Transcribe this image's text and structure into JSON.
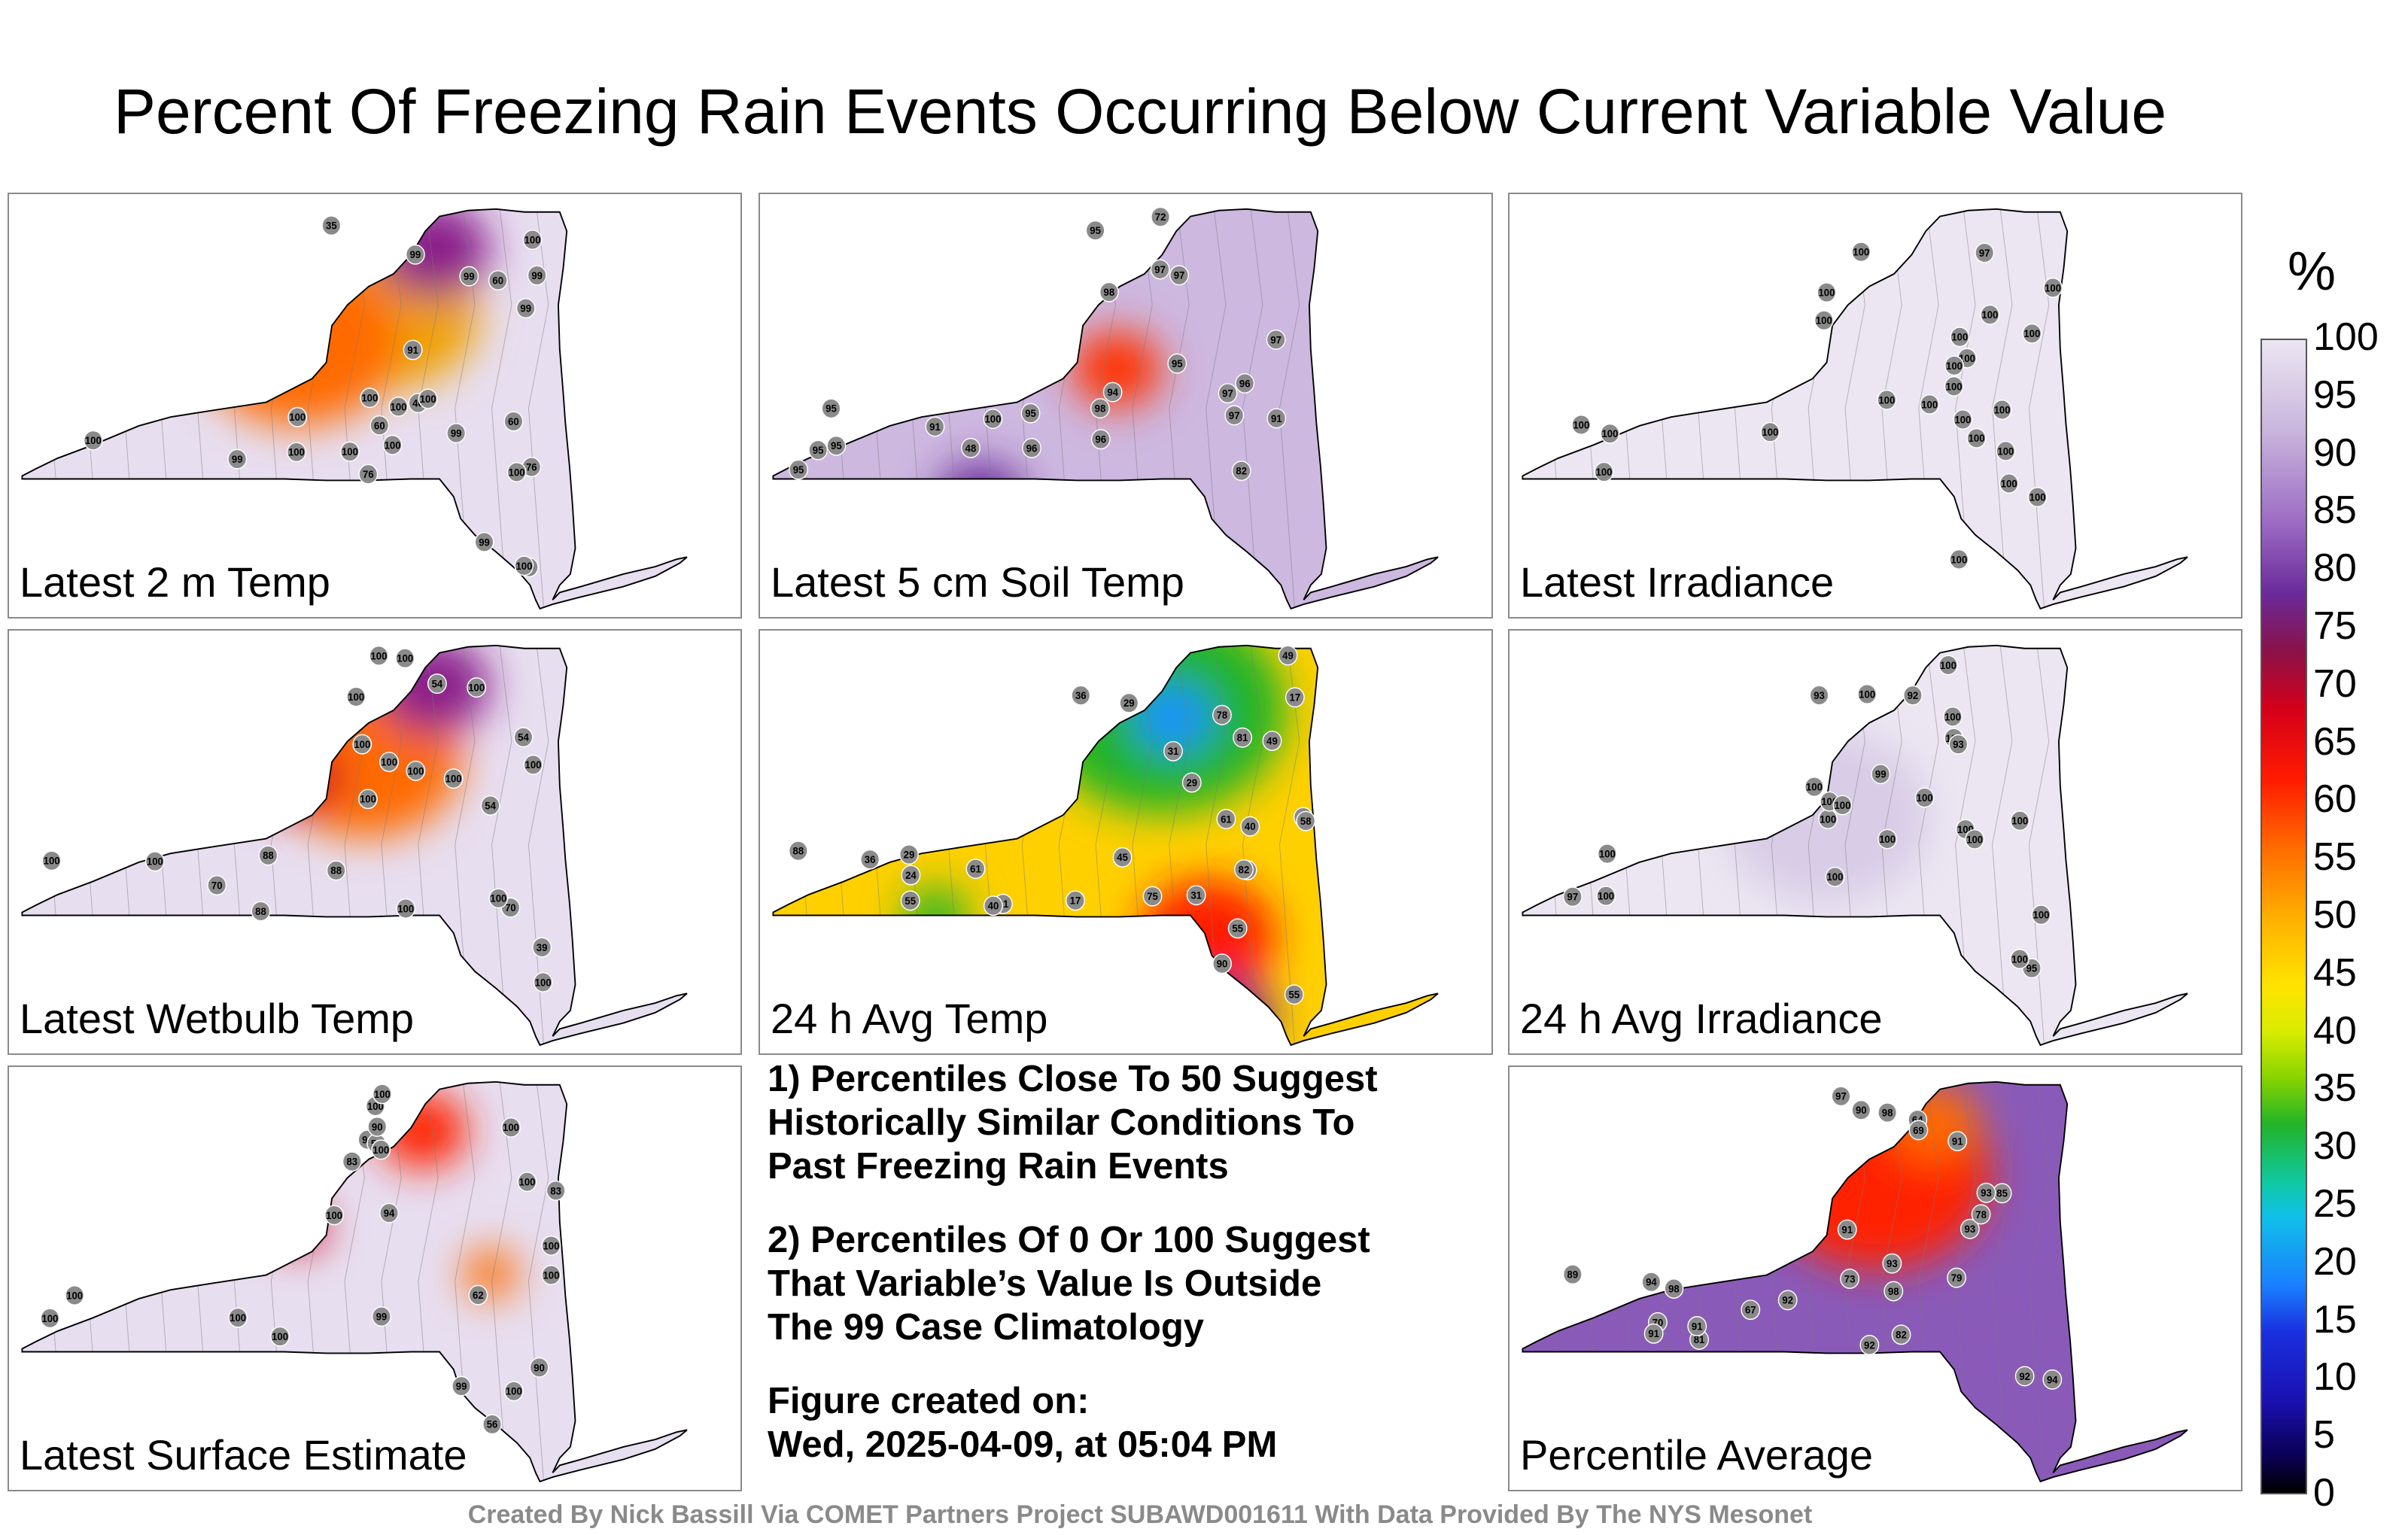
{
  "title": "Percent Of Freezing Rain Events Occurring Below Current Variable Value",
  "panels": [
    {
      "label": "Latest 2 m Temp",
      "base": "#e7def0",
      "hot": [
        [
          0.66,
          0.28,
          "#f0a000",
          0.16
        ],
        [
          0.5,
          0.35,
          "#ff6a00",
          0.18
        ],
        [
          0.74,
          0.12,
          "#8a1a8a",
          0.1
        ]
      ],
      "stations": [
        "99",
        "91",
        "76",
        "99",
        "46",
        "35",
        "60",
        "60",
        "60",
        "76",
        "99",
        "99",
        "100",
        "99",
        "100",
        "100",
        "100",
        "100",
        "100",
        "99",
        "100",
        "99",
        "99",
        "100",
        "100",
        "100",
        "100"
      ]
    },
    {
      "label": "Latest 5 cm Soil Temp",
      "base": "#cdb8e0",
      "hot": [
        [
          0.62,
          0.42,
          "#ff3000",
          0.08
        ],
        [
          0.38,
          0.75,
          "#6a2a9a",
          0.08
        ]
      ],
      "stations": [
        "96",
        "95",
        "95",
        "95",
        "94",
        "91",
        "72",
        "95",
        "48",
        "95",
        "82",
        "98",
        "97",
        "96",
        "95",
        "97",
        "97",
        "95",
        "98",
        "97",
        "97",
        "100",
        "96",
        "91"
      ]
    },
    {
      "label": "Latest Irradiance",
      "base": "#ece6f2",
      "hot": [],
      "stations": [
        "100",
        "100",
        "100",
        "97",
        "100",
        "100",
        "100",
        "100",
        "100",
        "100",
        "100",
        "100",
        "100",
        "100",
        "100",
        "100",
        "100",
        "100",
        "100",
        "100",
        "100",
        "100",
        "100",
        "100"
      ]
    },
    {
      "label": "Latest Wetbulb Temp",
      "base": "#e7def0",
      "hot": [
        [
          0.62,
          0.3,
          "#ff6a00",
          0.17
        ],
        [
          0.74,
          0.12,
          "#8a1a8a",
          0.1
        ],
        [
          0.5,
          0.35,
          "#d4001a",
          0.08
        ]
      ],
      "stations": [
        "100",
        "88",
        "88",
        "54",
        "39",
        "54",
        "70",
        "54",
        "88",
        "70",
        "100",
        "100",
        "100",
        "100",
        "100",
        "100",
        "100",
        "100",
        "100",
        "100",
        "100",
        "100",
        "100",
        "100"
      ]
    },
    {
      "label": "24 h Avg Temp",
      "base": "#ffd000",
      "hot": [
        [
          0.7,
          0.18,
          "#22b428",
          0.22
        ],
        [
          0.72,
          0.2,
          "#1a90ff",
          0.07
        ],
        [
          0.78,
          0.75,
          "#ff1a00",
          0.12
        ],
        [
          0.3,
          0.7,
          "#22b428",
          0.06
        ],
        [
          0.82,
          0.95,
          "#6a2a9a",
          0.08
        ]
      ],
      "stations": [
        "36",
        "31",
        "31",
        "55",
        "36",
        "17",
        "17",
        "12",
        "29",
        "29",
        "49",
        "40",
        "24",
        "29",
        "61",
        "61",
        "55",
        "55",
        "45",
        "40",
        "31",
        "49",
        "61",
        "58",
        "82",
        "75",
        "81",
        "78",
        "88",
        "90"
      ]
    },
    {
      "label": "24 h Avg Irradiance",
      "base": "#ece6f2",
      "hot": [
        [
          0.55,
          0.45,
          "#d8cce6",
          0.18
        ]
      ],
      "stations": [
        "100",
        "100",
        "100",
        "93",
        "97",
        "100",
        "92",
        "93",
        "95",
        "99",
        "100",
        "100",
        "100",
        "100",
        "100",
        "100",
        "100",
        "100",
        "100",
        "100",
        "100",
        "100",
        "100",
        "100"
      ]
    },
    {
      "label": "Latest Surface Estimate",
      "base": "#e7def0",
      "hot": [
        [
          0.72,
          0.14,
          "#ff2000",
          0.08
        ],
        [
          0.5,
          0.38,
          "#d4001a",
          0.05
        ],
        [
          0.84,
          0.5,
          "#ff6a00",
          0.05
        ]
      ],
      "stations": [
        "94",
        "90",
        "83",
        "99",
        "62",
        "56",
        "56",
        "83",
        "90",
        "99",
        "100",
        "100",
        "100",
        "100",
        "100",
        "100",
        "100",
        "100",
        "100",
        "100",
        "90",
        "100",
        "100",
        "100"
      ]
    },
    {
      "label": "Percentile Average",
      "base": "#8a5ab8",
      "hot": [
        [
          0.64,
          0.25,
          "#ff2000",
          0.2
        ],
        [
          0.74,
          0.12,
          "#ff6a00",
          0.08
        ]
      ],
      "stations": [
        "89",
        "85",
        "82",
        "93",
        "67",
        "64",
        "70",
        "73",
        "69",
        "78",
        "79",
        "81",
        "91",
        "93",
        "94",
        "92",
        "92",
        "91",
        "90",
        "91",
        "92",
        "93",
        "94",
        "97",
        "98",
        "98",
        "98",
        "91"
      ]
    }
  ],
  "notes": [
    "1) Percentiles Close To 50 Suggest\nHistorically Similar Conditions To\nPast Freezing Rain Events",
    "2) Percentiles Of 0 Or 100 Suggest\nThat Variable’s Value Is Outside\nThe 99 Case Climatology",
    "Figure created on:\nWed, 2025-04-09, at 05:04 PM"
  ],
  "colorbar": {
    "unit": "%",
    "ticks": [
      "100",
      "95",
      "90",
      "85",
      "80",
      "75",
      "70",
      "65",
      "60",
      "55",
      "50",
      "45",
      "40",
      "35",
      "30",
      "25",
      "20",
      "15",
      "10",
      "5",
      "0"
    ]
  },
  "footer": "Created By Nick Bassill Via COMET Partners Project SUBAWD001611 With Data Provided By The NYS Mesonet"
}
